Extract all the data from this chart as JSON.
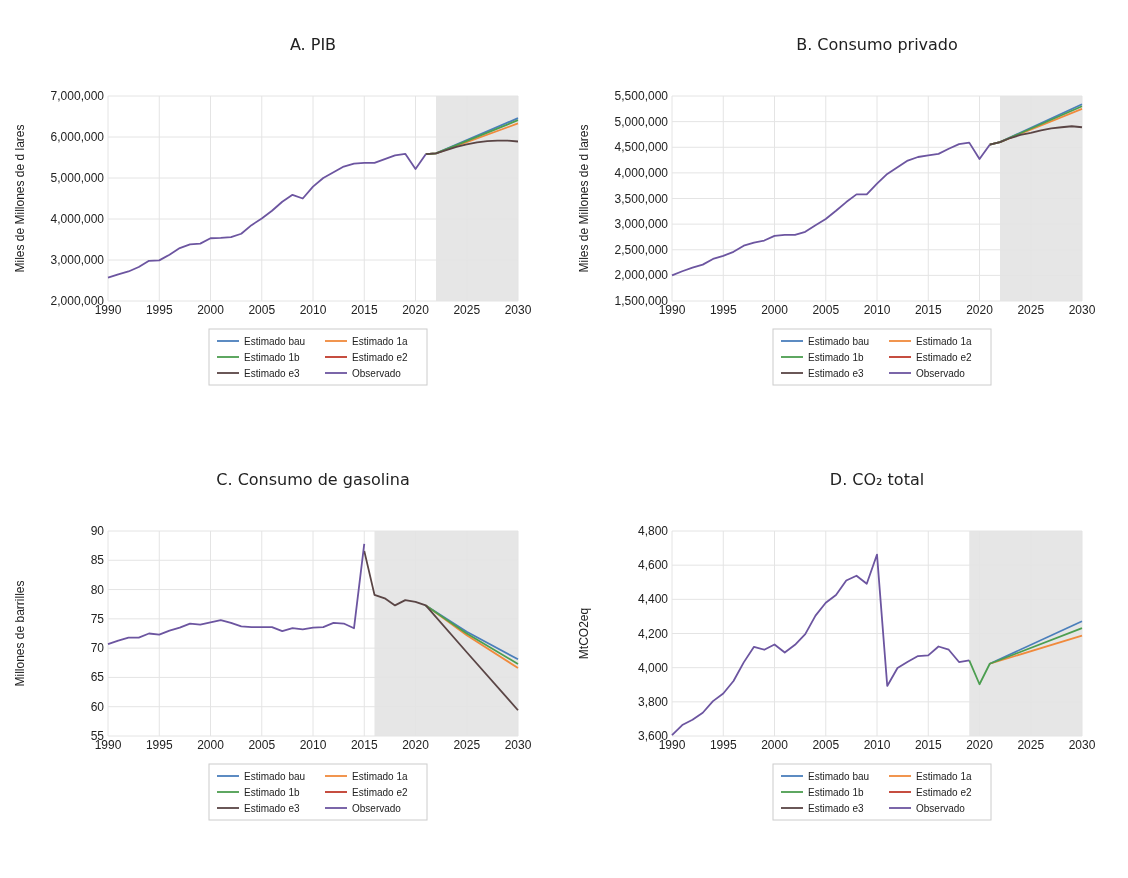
{
  "chart_data": [
    {
      "type": "line",
      "title": "A. PIB",
      "ylabel": "Miles de Millones de d lares",
      "xlim": [
        1990,
        2030
      ],
      "xticks": [
        1990,
        1995,
        2000,
        2005,
        2010,
        2015,
        2020,
        2025,
        2030
      ],
      "ylim": [
        2000000,
        7000000
      ],
      "yticks": [
        {
          "value": 2000000,
          "label": "2,000,000"
        },
        {
          "value": 3000000,
          "label": "3,000,000"
        },
        {
          "value": 4000000,
          "label": "4,000,000"
        },
        {
          "value": 5000000,
          "label": "5,000,000"
        },
        {
          "value": 6000000,
          "label": "6,000,000"
        },
        {
          "value": 7000000,
          "label": "7,000,000"
        }
      ],
      "grid": true,
      "legend": "bottom",
      "line_style": "solid",
      "bands": [
        {
          "axis": "x",
          "from": 2022,
          "to": 2030,
          "color": "#e6e6e6"
        }
      ],
      "series": [
        {
          "name": "Estimado bau",
          "color": "#4a7ebb",
          "x": [
            2021,
            2022,
            2030
          ],
          "values": [
            5580000,
            5600000,
            6460000
          ]
        },
        {
          "name": "Estimado 1a",
          "color": "#f08a3c",
          "x": [
            2021,
            2022,
            2030
          ],
          "values": [
            5580000,
            5600000,
            6330000
          ]
        },
        {
          "name": "Estimado 1b",
          "color": "#4c9e50",
          "x": [
            2021,
            2022,
            2030
          ],
          "values": [
            5580000,
            5600000,
            6410000
          ]
        },
        {
          "name": "Estimado e2",
          "color": "#c0392b"
        },
        {
          "name": "Estimado e3",
          "color": "#5a4545",
          "x": [
            2021,
            2022,
            2023,
            2024,
            2025,
            2026,
            2027,
            2028,
            2029,
            2030
          ],
          "values": [
            5580000,
            5600000,
            5680000,
            5760000,
            5820000,
            5870000,
            5900000,
            5910000,
            5910000,
            5890000
          ]
        },
        {
          "name": "Observado",
          "color": "#6c55a0",
          "x": [
            1990,
            1991,
            1992,
            1993,
            1994,
            1995,
            1996,
            1997,
            1998,
            1999,
            2000,
            2001,
            2002,
            2003,
            2004,
            2005,
            2006,
            2007,
            2008,
            2009,
            2010,
            2011,
            2012,
            2013,
            2014,
            2015,
            2016,
            2017,
            2018,
            2019,
            2020,
            2021
          ],
          "values": [
            2570000,
            2650000,
            2720000,
            2830000,
            2980000,
            2990000,
            3130000,
            3290000,
            3380000,
            3400000,
            3530000,
            3540000,
            3560000,
            3640000,
            3850000,
            4010000,
            4200000,
            4420000,
            4590000,
            4500000,
            4790000,
            5000000,
            5140000,
            5280000,
            5350000,
            5370000,
            5370000,
            5460000,
            5550000,
            5590000,
            5220000,
            5580000
          ]
        }
      ]
    },
    {
      "type": "line",
      "title": "B. Consumo privado",
      "ylabel": "Miles de Millones de d lares",
      "xlim": [
        1990,
        2030
      ],
      "xticks": [
        1990,
        1995,
        2000,
        2005,
        2010,
        2015,
        2020,
        2025,
        2030
      ],
      "ylim": [
        1500000,
        5500000
      ],
      "yticks": [
        {
          "value": 1500000,
          "label": "1,500,000"
        },
        {
          "value": 2000000,
          "label": "2,000,000"
        },
        {
          "value": 2500000,
          "label": "2,500,000"
        },
        {
          "value": 3000000,
          "label": "3,000,000"
        },
        {
          "value": 3500000,
          "label": "3,500,000"
        },
        {
          "value": 4000000,
          "label": "4,000,000"
        },
        {
          "value": 4500000,
          "label": "4,500,000"
        },
        {
          "value": 5000000,
          "label": "5,000,000"
        },
        {
          "value": 5500000,
          "label": "5,500,000"
        }
      ],
      "grid": true,
      "legend": "bottom",
      "line_style": "solid",
      "bands": [
        {
          "axis": "x",
          "from": 2022,
          "to": 2030,
          "color": "#e6e6e6"
        }
      ],
      "series": [
        {
          "name": "Estimado bau",
          "color": "#4a7ebb",
          "x": [
            2021,
            2022,
            2030
          ],
          "values": [
            4550000,
            4600000,
            5340000
          ]
        },
        {
          "name": "Estimado 1a",
          "color": "#f08a3c",
          "x": [
            2021,
            2022,
            2030
          ],
          "values": [
            4550000,
            4600000,
            5250000
          ]
        },
        {
          "name": "Estimado 1b",
          "color": "#4c9e50",
          "x": [
            2021,
            2022,
            2030
          ],
          "values": [
            4550000,
            4600000,
            5300000
          ]
        },
        {
          "name": "Estimado e2",
          "color": "#c0392b"
        },
        {
          "name": "Estimado e3",
          "color": "#5a4545",
          "x": [
            2021,
            2022,
            2023,
            2024,
            2025,
            2026,
            2027,
            2028,
            2029,
            2030
          ],
          "values": [
            4550000,
            4600000,
            4680000,
            4740000,
            4780000,
            4830000,
            4870000,
            4890000,
            4910000,
            4890000
          ]
        },
        {
          "name": "Observado",
          "color": "#6c55a0",
          "x": [
            1990,
            1991,
            1992,
            1993,
            1994,
            1995,
            1996,
            1997,
            1998,
            1999,
            2000,
            2001,
            2002,
            2003,
            2004,
            2005,
            2006,
            2007,
            2008,
            2009,
            2010,
            2011,
            2012,
            2013,
            2014,
            2015,
            2016,
            2017,
            2018,
            2019,
            2020,
            2021
          ],
          "values": [
            2000000,
            2080000,
            2150000,
            2210000,
            2320000,
            2380000,
            2460000,
            2580000,
            2640000,
            2680000,
            2770000,
            2790000,
            2790000,
            2850000,
            2980000,
            3100000,
            3260000,
            3430000,
            3580000,
            3580000,
            3790000,
            3980000,
            4110000,
            4240000,
            4310000,
            4340000,
            4370000,
            4470000,
            4560000,
            4590000,
            4270000,
            4550000
          ]
        }
      ]
    },
    {
      "type": "line",
      "title": "C. Consumo de gasolina",
      "ylabel": "Millones de barrilles",
      "xlim": [
        1990,
        2030
      ],
      "xticks": [
        1990,
        1995,
        2000,
        2005,
        2010,
        2015,
        2020,
        2025,
        2030
      ],
      "ylim": [
        55,
        90
      ],
      "yticks": [
        55,
        60,
        65,
        70,
        75,
        80,
        85,
        90
      ],
      "grid": true,
      "legend": "bottom",
      "line_style": "solid",
      "bands": [
        {
          "axis": "x",
          "from": 2016,
          "to": 2030,
          "color": "#e6e6e6"
        }
      ],
      "series": [
        {
          "name": "Estimado bau",
          "color": "#4a7ebb",
          "x": [
            2021,
            2025,
            2030
          ],
          "values": [
            77.3,
            72.8,
            68.1
          ]
        },
        {
          "name": "Estimado 1a",
          "color": "#f08a3c",
          "x": [
            2021,
            2025,
            2030
          ],
          "values": [
            77.3,
            72.2,
            66.6
          ]
        },
        {
          "name": "Estimado 1b",
          "color": "#4c9e50",
          "x": [
            2021,
            2025,
            2030
          ],
          "values": [
            77.3,
            72.5,
            67.3
          ]
        },
        {
          "name": "Estimado e2",
          "color": "#c0392b"
        },
        {
          "name": "Estimado e3",
          "color": "#5a4545",
          "x": [
            2015,
            2016,
            2017,
            2018,
            2019,
            2020,
            2021,
            2025,
            2030
          ],
          "values": [
            86.6,
            79.1,
            78.5,
            77.3,
            78.2,
            77.9,
            77.3,
            69.3,
            59.4
          ]
        },
        {
          "name": "Observado",
          "color": "#6c55a0",
          "x": [
            1990,
            1991,
            1992,
            1993,
            1994,
            1995,
            1996,
            1997,
            1998,
            1999,
            2000,
            2001,
            2002,
            2003,
            2004,
            2005,
            2006,
            2007,
            2008,
            2009,
            2010,
            2011,
            2012,
            2013,
            2014,
            2015
          ],
          "values": [
            70.7,
            71.3,
            71.8,
            71.8,
            72.5,
            72.3,
            73.0,
            73.5,
            74.2,
            74.0,
            74.4,
            74.8,
            74.3,
            73.7,
            73.6,
            73.6,
            73.6,
            72.9,
            73.4,
            73.2,
            73.5,
            73.6,
            74.3,
            74.2,
            73.4,
            87.8
          ]
        }
      ]
    },
    {
      "type": "line",
      "title": "D. CO₂ total",
      "ylabel": "MtCO2eq",
      "xlim": [
        1990,
        2030
      ],
      "xticks": [
        1990,
        1995,
        2000,
        2005,
        2010,
        2015,
        2020,
        2025,
        2030
      ],
      "ylim": [
        3600,
        4800
      ],
      "yticks": [
        {
          "value": 3600,
          "label": "3,600"
        },
        {
          "value": 3800,
          "label": "3,800"
        },
        {
          "value": 4000,
          "label": "4,000"
        },
        {
          "value": 4200,
          "label": "4,200"
        },
        {
          "value": 4400,
          "label": "4,400"
        },
        {
          "value": 4600,
          "label": "4,600"
        },
        {
          "value": 4800,
          "label": "4,800"
        }
      ],
      "grid": true,
      "legend": "bottom",
      "line_style": "solid",
      "bands": [
        {
          "axis": "x",
          "from": 2019,
          "to": 2030,
          "color": "#e6e6e6"
        }
      ],
      "series": [
        {
          "name": "Estimado bau",
          "color": "#4a7ebb",
          "x": [
            2021,
            2030
          ],
          "values": [
            4023,
            4272
          ]
        },
        {
          "name": "Estimado 1a",
          "color": "#f08a3c",
          "x": [
            2021,
            2030
          ],
          "values": [
            4023,
            4188
          ]
        },
        {
          "name": "Estimado 1b",
          "color": "#4c9e50",
          "x": [
            2019,
            2020,
            2021,
            2030
          ],
          "values": [
            4043,
            3903,
            4023,
            4231
          ]
        },
        {
          "name": "Estimado e2",
          "color": "#c0392b"
        },
        {
          "name": "Estimado e3",
          "color": "#5a4545"
        },
        {
          "name": "Observado",
          "color": "#6c55a0",
          "x": [
            1990,
            1991,
            1992,
            1993,
            1994,
            1995,
            1996,
            1997,
            1998,
            1999,
            2000,
            2001,
            2002,
            2003,
            2004,
            2005,
            2006,
            2007,
            2008,
            2009,
            2010,
            2011,
            2012,
            2013,
            2014,
            2015,
            2016,
            2017,
            2018,
            2019
          ],
          "values": [
            3605,
            3664,
            3695,
            3736,
            3804,
            3849,
            3922,
            4031,
            4122,
            4105,
            4136,
            4089,
            4134,
            4196,
            4305,
            4380,
            4425,
            4510,
            4538,
            4491,
            4662,
            3893,
            3998,
            4035,
            4068,
            4072,
            4124,
            4105,
            4033,
            4043
          ]
        }
      ]
    }
  ]
}
